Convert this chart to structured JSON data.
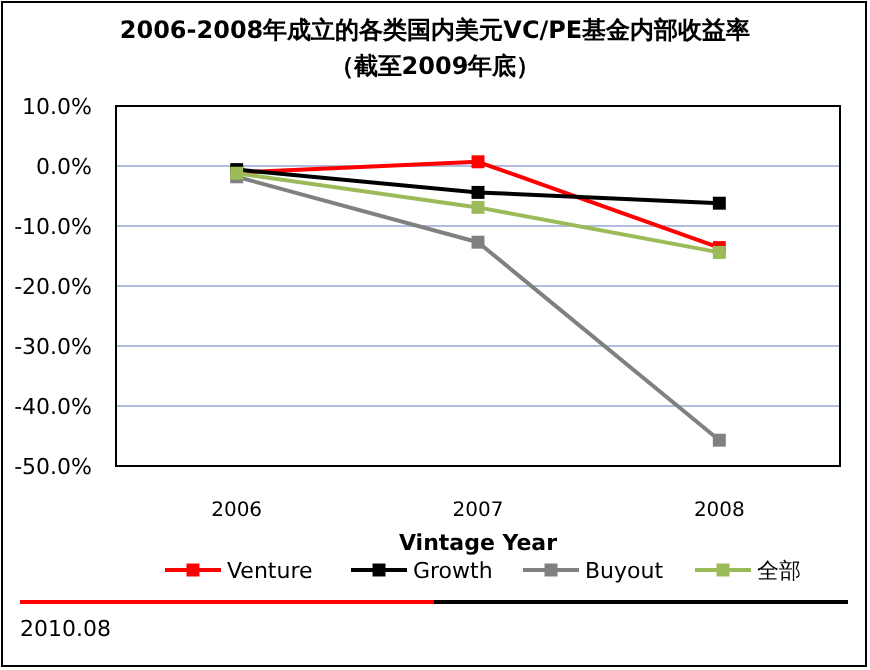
{
  "chart_data": {
    "type": "line",
    "title": "2006-2008年成立的各类国内美元VC/PE基金内部收益率",
    "subtitle": "（截至2009年底）",
    "xlabel": "Vintage Year",
    "categories": [
      "2006",
      "2007",
      "2008"
    ],
    "series": [
      {
        "name": "Venture",
        "color": "#ff0000",
        "values": [
          -1.1,
          0.7,
          -13.6
        ]
      },
      {
        "name": "Growth",
        "color": "#000000",
        "values": [
          -0.6,
          -4.4,
          -6.2
        ]
      },
      {
        "name": "Buyout",
        "color": "#808080",
        "values": [
          -1.8,
          -12.7,
          -45.7
        ]
      },
      {
        "name": "全部",
        "color": "#9bbb59",
        "values": [
          -1.2,
          -6.9,
          -14.4
        ]
      }
    ],
    "ylim": [
      -50,
      10
    ],
    "yticks": [
      {
        "value": 10,
        "label": "10.0%"
      },
      {
        "value": 0,
        "label": "0.0%"
      },
      {
        "value": -10,
        "label": "-10.0%"
      },
      {
        "value": -20,
        "label": "-20.0%"
      },
      {
        "value": -30,
        "label": "-30.0%"
      },
      {
        "value": -40,
        "label": "-40.0%"
      },
      {
        "value": -50,
        "label": "-50.0%"
      }
    ],
    "grid": "y",
    "legend": "bottom",
    "marker": "square",
    "line_style": "solid",
    "annotations": [
      "2010.08"
    ]
  }
}
